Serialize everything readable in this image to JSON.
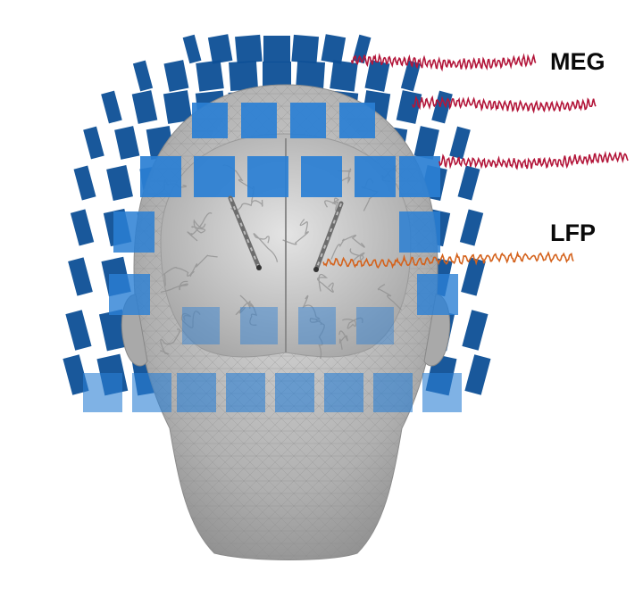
{
  "labels": {
    "meg": "MEG",
    "lfp": "LFP"
  },
  "colors": {
    "sensor_light": "#2a7fd4",
    "sensor_dark": "#0d4f96",
    "meg_trace": "#b3163a",
    "lfp_trace": "#d4621c",
    "head": "#b9b9b9",
    "brain": "#d2d2d2",
    "electrode": "#555555"
  },
  "figure": {
    "meg_traces": 3,
    "lfp_traces": 1,
    "electrodes": 2
  }
}
